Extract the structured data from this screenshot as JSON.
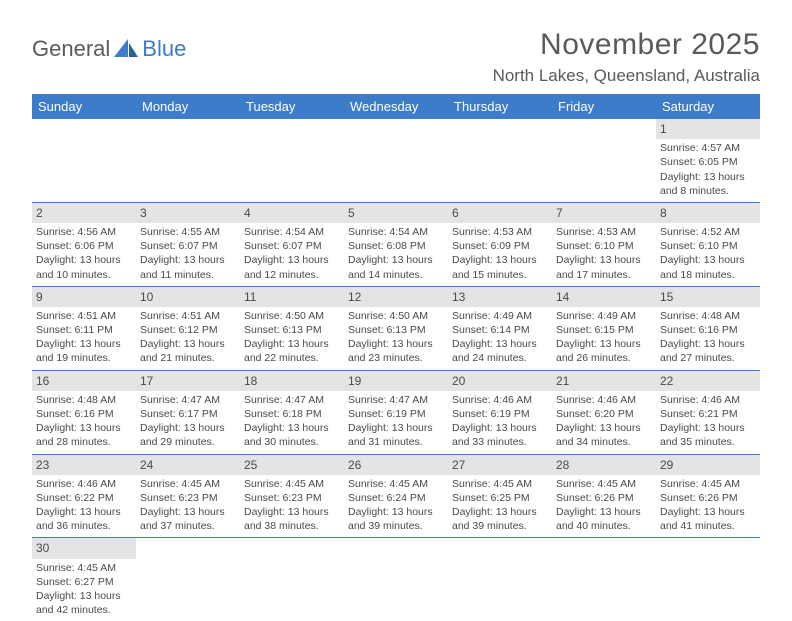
{
  "brand": {
    "part1": "General",
    "part2": "Blue"
  },
  "title": "November 2025",
  "location": "North Lakes, Queensland, Australia",
  "colors": {
    "header_bg": "#3d7cc9",
    "header_text": "#ffffff",
    "daynum_bg": "#e4e4e4",
    "body_text": "#4a4a4a",
    "row_divider": "#3d7cc9",
    "page_bg": "#ffffff"
  },
  "day_headers": [
    "Sunday",
    "Monday",
    "Tuesday",
    "Wednesday",
    "Thursday",
    "Friday",
    "Saturday"
  ],
  "weeks": [
    [
      null,
      null,
      null,
      null,
      null,
      null,
      {
        "n": "1",
        "sr": "Sunrise: 4:57 AM",
        "ss": "Sunset: 6:05 PM",
        "dl1": "Daylight: 13 hours",
        "dl2": "and 8 minutes."
      }
    ],
    [
      {
        "n": "2",
        "sr": "Sunrise: 4:56 AM",
        "ss": "Sunset: 6:06 PM",
        "dl1": "Daylight: 13 hours",
        "dl2": "and 10 minutes."
      },
      {
        "n": "3",
        "sr": "Sunrise: 4:55 AM",
        "ss": "Sunset: 6:07 PM",
        "dl1": "Daylight: 13 hours",
        "dl2": "and 11 minutes."
      },
      {
        "n": "4",
        "sr": "Sunrise: 4:54 AM",
        "ss": "Sunset: 6:07 PM",
        "dl1": "Daylight: 13 hours",
        "dl2": "and 12 minutes."
      },
      {
        "n": "5",
        "sr": "Sunrise: 4:54 AM",
        "ss": "Sunset: 6:08 PM",
        "dl1": "Daylight: 13 hours",
        "dl2": "and 14 minutes."
      },
      {
        "n": "6",
        "sr": "Sunrise: 4:53 AM",
        "ss": "Sunset: 6:09 PM",
        "dl1": "Daylight: 13 hours",
        "dl2": "and 15 minutes."
      },
      {
        "n": "7",
        "sr": "Sunrise: 4:53 AM",
        "ss": "Sunset: 6:10 PM",
        "dl1": "Daylight: 13 hours",
        "dl2": "and 17 minutes."
      },
      {
        "n": "8",
        "sr": "Sunrise: 4:52 AM",
        "ss": "Sunset: 6:10 PM",
        "dl1": "Daylight: 13 hours",
        "dl2": "and 18 minutes."
      }
    ],
    [
      {
        "n": "9",
        "sr": "Sunrise: 4:51 AM",
        "ss": "Sunset: 6:11 PM",
        "dl1": "Daylight: 13 hours",
        "dl2": "and 19 minutes."
      },
      {
        "n": "10",
        "sr": "Sunrise: 4:51 AM",
        "ss": "Sunset: 6:12 PM",
        "dl1": "Daylight: 13 hours",
        "dl2": "and 21 minutes."
      },
      {
        "n": "11",
        "sr": "Sunrise: 4:50 AM",
        "ss": "Sunset: 6:13 PM",
        "dl1": "Daylight: 13 hours",
        "dl2": "and 22 minutes."
      },
      {
        "n": "12",
        "sr": "Sunrise: 4:50 AM",
        "ss": "Sunset: 6:13 PM",
        "dl1": "Daylight: 13 hours",
        "dl2": "and 23 minutes."
      },
      {
        "n": "13",
        "sr": "Sunrise: 4:49 AM",
        "ss": "Sunset: 6:14 PM",
        "dl1": "Daylight: 13 hours",
        "dl2": "and 24 minutes."
      },
      {
        "n": "14",
        "sr": "Sunrise: 4:49 AM",
        "ss": "Sunset: 6:15 PM",
        "dl1": "Daylight: 13 hours",
        "dl2": "and 26 minutes."
      },
      {
        "n": "15",
        "sr": "Sunrise: 4:48 AM",
        "ss": "Sunset: 6:16 PM",
        "dl1": "Daylight: 13 hours",
        "dl2": "and 27 minutes."
      }
    ],
    [
      {
        "n": "16",
        "sr": "Sunrise: 4:48 AM",
        "ss": "Sunset: 6:16 PM",
        "dl1": "Daylight: 13 hours",
        "dl2": "and 28 minutes."
      },
      {
        "n": "17",
        "sr": "Sunrise: 4:47 AM",
        "ss": "Sunset: 6:17 PM",
        "dl1": "Daylight: 13 hours",
        "dl2": "and 29 minutes."
      },
      {
        "n": "18",
        "sr": "Sunrise: 4:47 AM",
        "ss": "Sunset: 6:18 PM",
        "dl1": "Daylight: 13 hours",
        "dl2": "and 30 minutes."
      },
      {
        "n": "19",
        "sr": "Sunrise: 4:47 AM",
        "ss": "Sunset: 6:19 PM",
        "dl1": "Daylight: 13 hours",
        "dl2": "and 31 minutes."
      },
      {
        "n": "20",
        "sr": "Sunrise: 4:46 AM",
        "ss": "Sunset: 6:19 PM",
        "dl1": "Daylight: 13 hours",
        "dl2": "and 33 minutes."
      },
      {
        "n": "21",
        "sr": "Sunrise: 4:46 AM",
        "ss": "Sunset: 6:20 PM",
        "dl1": "Daylight: 13 hours",
        "dl2": "and 34 minutes."
      },
      {
        "n": "22",
        "sr": "Sunrise: 4:46 AM",
        "ss": "Sunset: 6:21 PM",
        "dl1": "Daylight: 13 hours",
        "dl2": "and 35 minutes."
      }
    ],
    [
      {
        "n": "23",
        "sr": "Sunrise: 4:46 AM",
        "ss": "Sunset: 6:22 PM",
        "dl1": "Daylight: 13 hours",
        "dl2": "and 36 minutes."
      },
      {
        "n": "24",
        "sr": "Sunrise: 4:45 AM",
        "ss": "Sunset: 6:23 PM",
        "dl1": "Daylight: 13 hours",
        "dl2": "and 37 minutes."
      },
      {
        "n": "25",
        "sr": "Sunrise: 4:45 AM",
        "ss": "Sunset: 6:23 PM",
        "dl1": "Daylight: 13 hours",
        "dl2": "and 38 minutes."
      },
      {
        "n": "26",
        "sr": "Sunrise: 4:45 AM",
        "ss": "Sunset: 6:24 PM",
        "dl1": "Daylight: 13 hours",
        "dl2": "and 39 minutes."
      },
      {
        "n": "27",
        "sr": "Sunrise: 4:45 AM",
        "ss": "Sunset: 6:25 PM",
        "dl1": "Daylight: 13 hours",
        "dl2": "and 39 minutes."
      },
      {
        "n": "28",
        "sr": "Sunrise: 4:45 AM",
        "ss": "Sunset: 6:26 PM",
        "dl1": "Daylight: 13 hours",
        "dl2": "and 40 minutes."
      },
      {
        "n": "29",
        "sr": "Sunrise: 4:45 AM",
        "ss": "Sunset: 6:26 PM",
        "dl1": "Daylight: 13 hours",
        "dl2": "and 41 minutes."
      }
    ],
    [
      {
        "n": "30",
        "sr": "Sunrise: 4:45 AM",
        "ss": "Sunset: 6:27 PM",
        "dl1": "Daylight: 13 hours",
        "dl2": "and 42 minutes."
      },
      null,
      null,
      null,
      null,
      null,
      null
    ]
  ]
}
